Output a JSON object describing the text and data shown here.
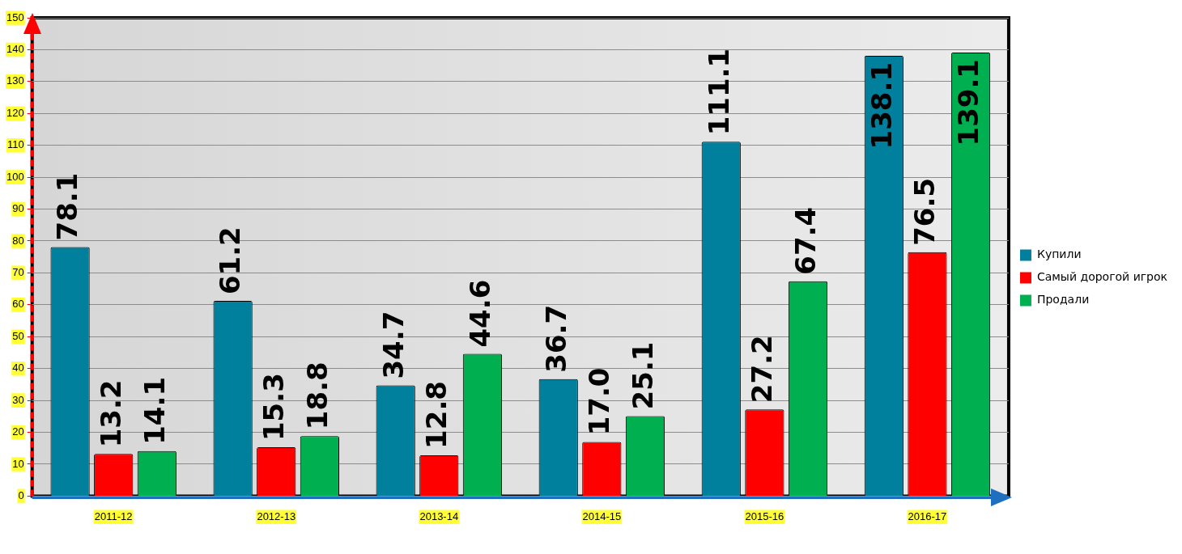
{
  "chart_data": {
    "type": "bar",
    "categories": [
      "2011-12",
      "2012-13",
      "2013-14",
      "2014-15",
      "2015-16",
      "2016-17"
    ],
    "series": [
      {
        "name": "Купили",
        "color": "#00809c",
        "values": [
          78.1,
          61.2,
          34.7,
          36.7,
          111.1,
          138.1
        ],
        "value_labels": [
          "78.1",
          "61.2",
          "34.7",
          "36.7",
          "111.1",
          "138.1"
        ]
      },
      {
        "name": "Самый дорогой игрок",
        "color": "#ff0000",
        "values": [
          13.2,
          15.3,
          12.8,
          17.0,
          27.2,
          76.5
        ],
        "value_labels": [
          "13.2",
          "15.3",
          "12.8",
          "17.0",
          "27.2",
          "76.5"
        ]
      },
      {
        "name": "Продали",
        "color": "#00b050",
        "values": [
          14.1,
          18.8,
          44.6,
          25.1,
          67.4,
          139.1
        ],
        "value_labels": [
          "14.1",
          "18.8",
          "44.6",
          "25.1",
          "67.4",
          "139.1"
        ]
      }
    ],
    "ylim": [
      0,
      150
    ],
    "yticks": [
      0,
      10,
      20,
      30,
      40,
      50,
      60,
      70,
      80,
      90,
      100,
      110,
      120,
      130,
      140,
      150
    ],
    "grid": "y",
    "legend": "right"
  }
}
